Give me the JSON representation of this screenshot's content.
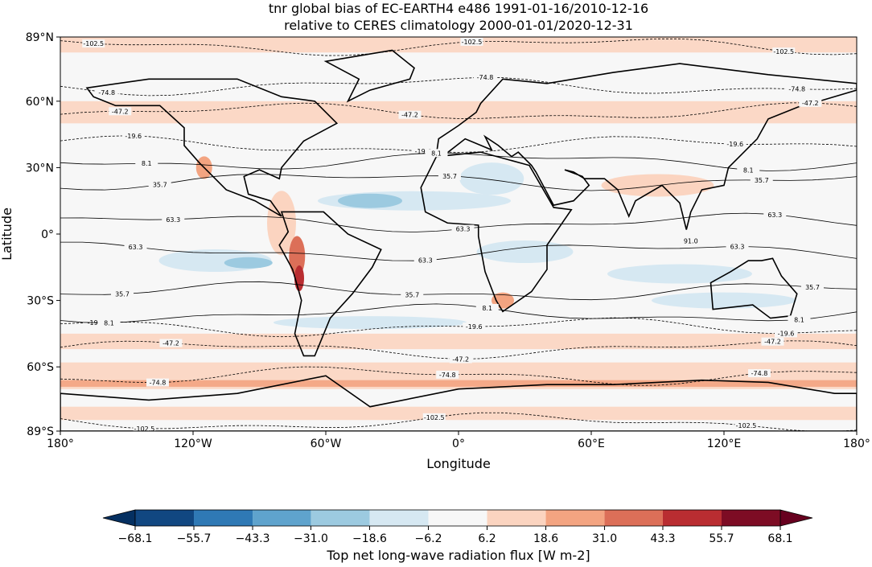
{
  "title": [
    "tnr global bias of EC-EARTH4 e486 1991-01-16/2010-12-16",
    "relative to CERES climatology 2000-01-01/2020-12-31"
  ],
  "xlabel": "Longitude",
  "ylabel": "Latitude",
  "xlim": [
    -180,
    180
  ],
  "ylim": [
    -89,
    89
  ],
  "xticks": [
    {
      "value": -180,
      "label": "180°"
    },
    {
      "value": -120,
      "label": "120°W"
    },
    {
      "value": -60,
      "label": "60°W"
    },
    {
      "value": 0,
      "label": "0°"
    },
    {
      "value": 60,
      "label": "60°E"
    },
    {
      "value": 120,
      "label": "120°E"
    },
    {
      "value": 180,
      "label": "180°"
    }
  ],
  "yticks": [
    {
      "value": 89,
      "label": "89°N"
    },
    {
      "value": 60,
      "label": "60°N"
    },
    {
      "value": 30,
      "label": "30°N"
    },
    {
      "value": 0,
      "label": "0°"
    },
    {
      "value": -30,
      "label": "30°S"
    },
    {
      "value": -60,
      "label": "60°S"
    },
    {
      "value": -89,
      "label": "89°S"
    }
  ],
  "contour_levels": [
    -102.5,
    -74.8,
    -47.2,
    -19.6,
    8.1,
    35.7,
    63.3,
    {
      "value": 91.0,
      "label": "91.0"
    }
  ],
  "colorbar": {
    "label": "Top net long-wave radiation flux [W m-2]",
    "levels": [
      {
        "value": -68.1,
        "label": "−68.1"
      },
      {
        "value": -55.7,
        "label": "−55.7"
      },
      {
        "value": -43.3,
        "label": "−43.3"
      },
      {
        "value": -31.0,
        "label": "−31.0"
      },
      {
        "value": -18.6,
        "label": "−18.6"
      },
      {
        "value": -6.2,
        "label": "−6.2"
      },
      6.2,
      18.6,
      {
        "value": 31.0,
        "label": "31.0"
      },
      43.3,
      55.7,
      68.1
    ],
    "colors": [
      "#114781",
      "#2f79b5",
      "#5fa3cd",
      "#9ccae0",
      "#d6e8f2",
      "#f7f7f7",
      "#fbd4c0",
      "#f3a481",
      "#dc6f58",
      "#b92d31",
      "#7d0c24"
    ],
    "under_color": "#053061",
    "over_color": "#67001f"
  }
}
